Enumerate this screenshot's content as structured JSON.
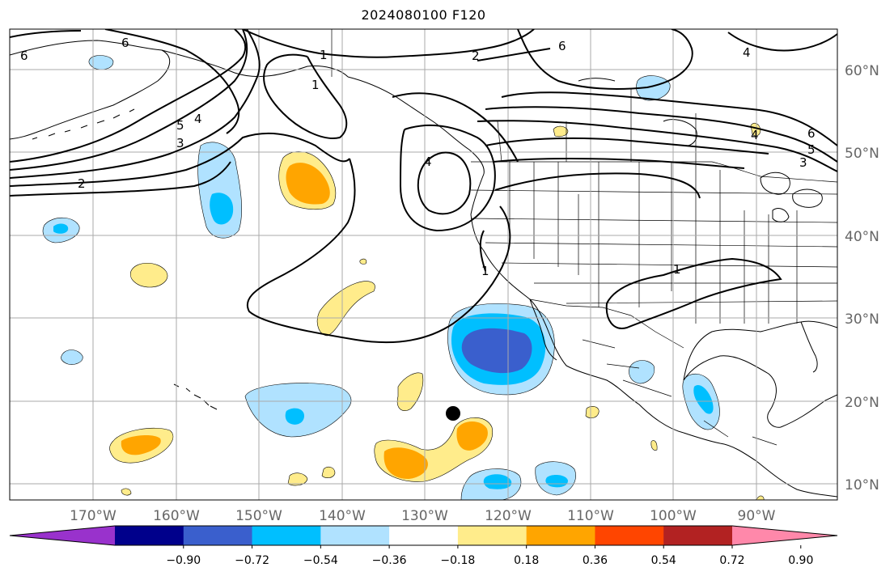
{
  "title": "2024080100 F120",
  "lon_ticks": [
    "170°W",
    "160°W",
    "150°W",
    "140°W",
    "130°W",
    "120°W",
    "110°W",
    "100°W",
    "90°W"
  ],
  "lat_ticks": [
    "60°N",
    "50°N",
    "40°N",
    "30°N",
    "20°N",
    "10°N"
  ],
  "colorbar": {
    "tick_labels": [
      "−0.90",
      "−0.72",
      "−0.54",
      "−0.36",
      "−0.18",
      "0.18",
      "0.36",
      "0.54",
      "0.72",
      "0.90"
    ],
    "colors": [
      "#9932cc",
      "#00008b",
      "#3a5fcd",
      "#00bfff",
      "#b0e2ff",
      "#ffffff",
      "#ffec8b",
      "#ffa500",
      "#ff4500",
      "#b22222",
      "#ff88aa"
    ]
  },
  "contour_labels": [
    "6",
    "6",
    "5",
    "4",
    "3",
    "2",
    "1",
    "1",
    "2",
    "6",
    "4",
    "5",
    "6",
    "4",
    "3",
    "4",
    "1",
    "1"
  ],
  "colors": {
    "line": "#000000",
    "grid": "#aaaaaa",
    "tick_text": "#666666"
  }
}
